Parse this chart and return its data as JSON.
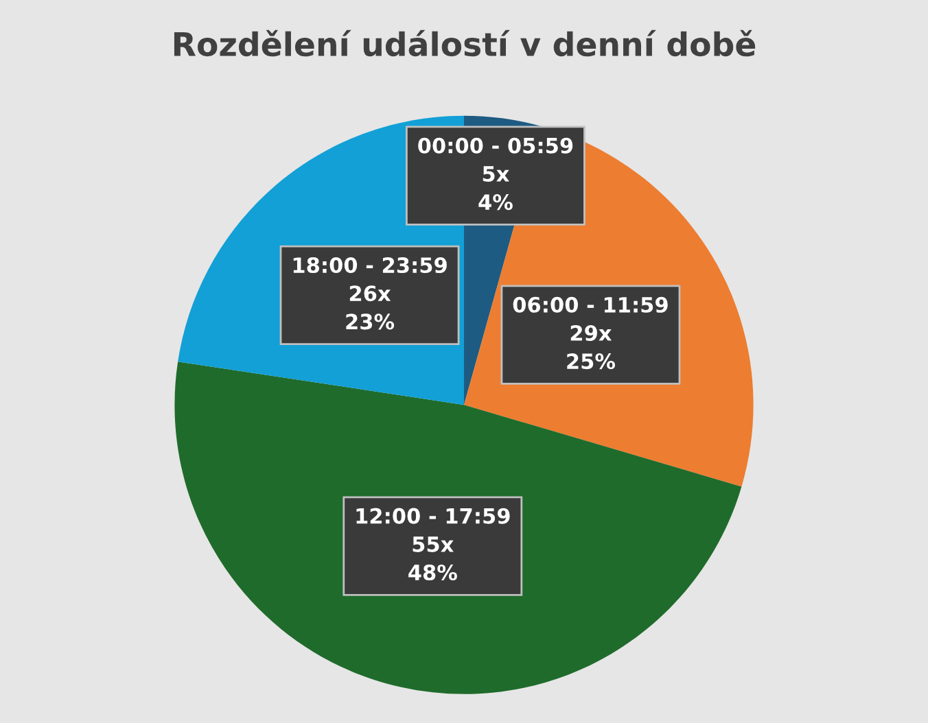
{
  "chart_data": {
    "type": "pie",
    "title": "Rozdělení událostí v denní době",
    "categories": [
      "00:00 - 05:59",
      "06:00 - 11:59",
      "12:00 - 17:59",
      "18:00 - 23:59"
    ],
    "values": [
      5,
      29,
      55,
      26
    ],
    "value_labels": [
      "5x\n4%",
      "29x\n25%",
      "55x\n48%",
      "26x\n23%"
    ],
    "colors": [
      "#1d5b82",
      "#ed7d31",
      "#1f6b2b",
      "#12a0d6"
    ]
  }
}
